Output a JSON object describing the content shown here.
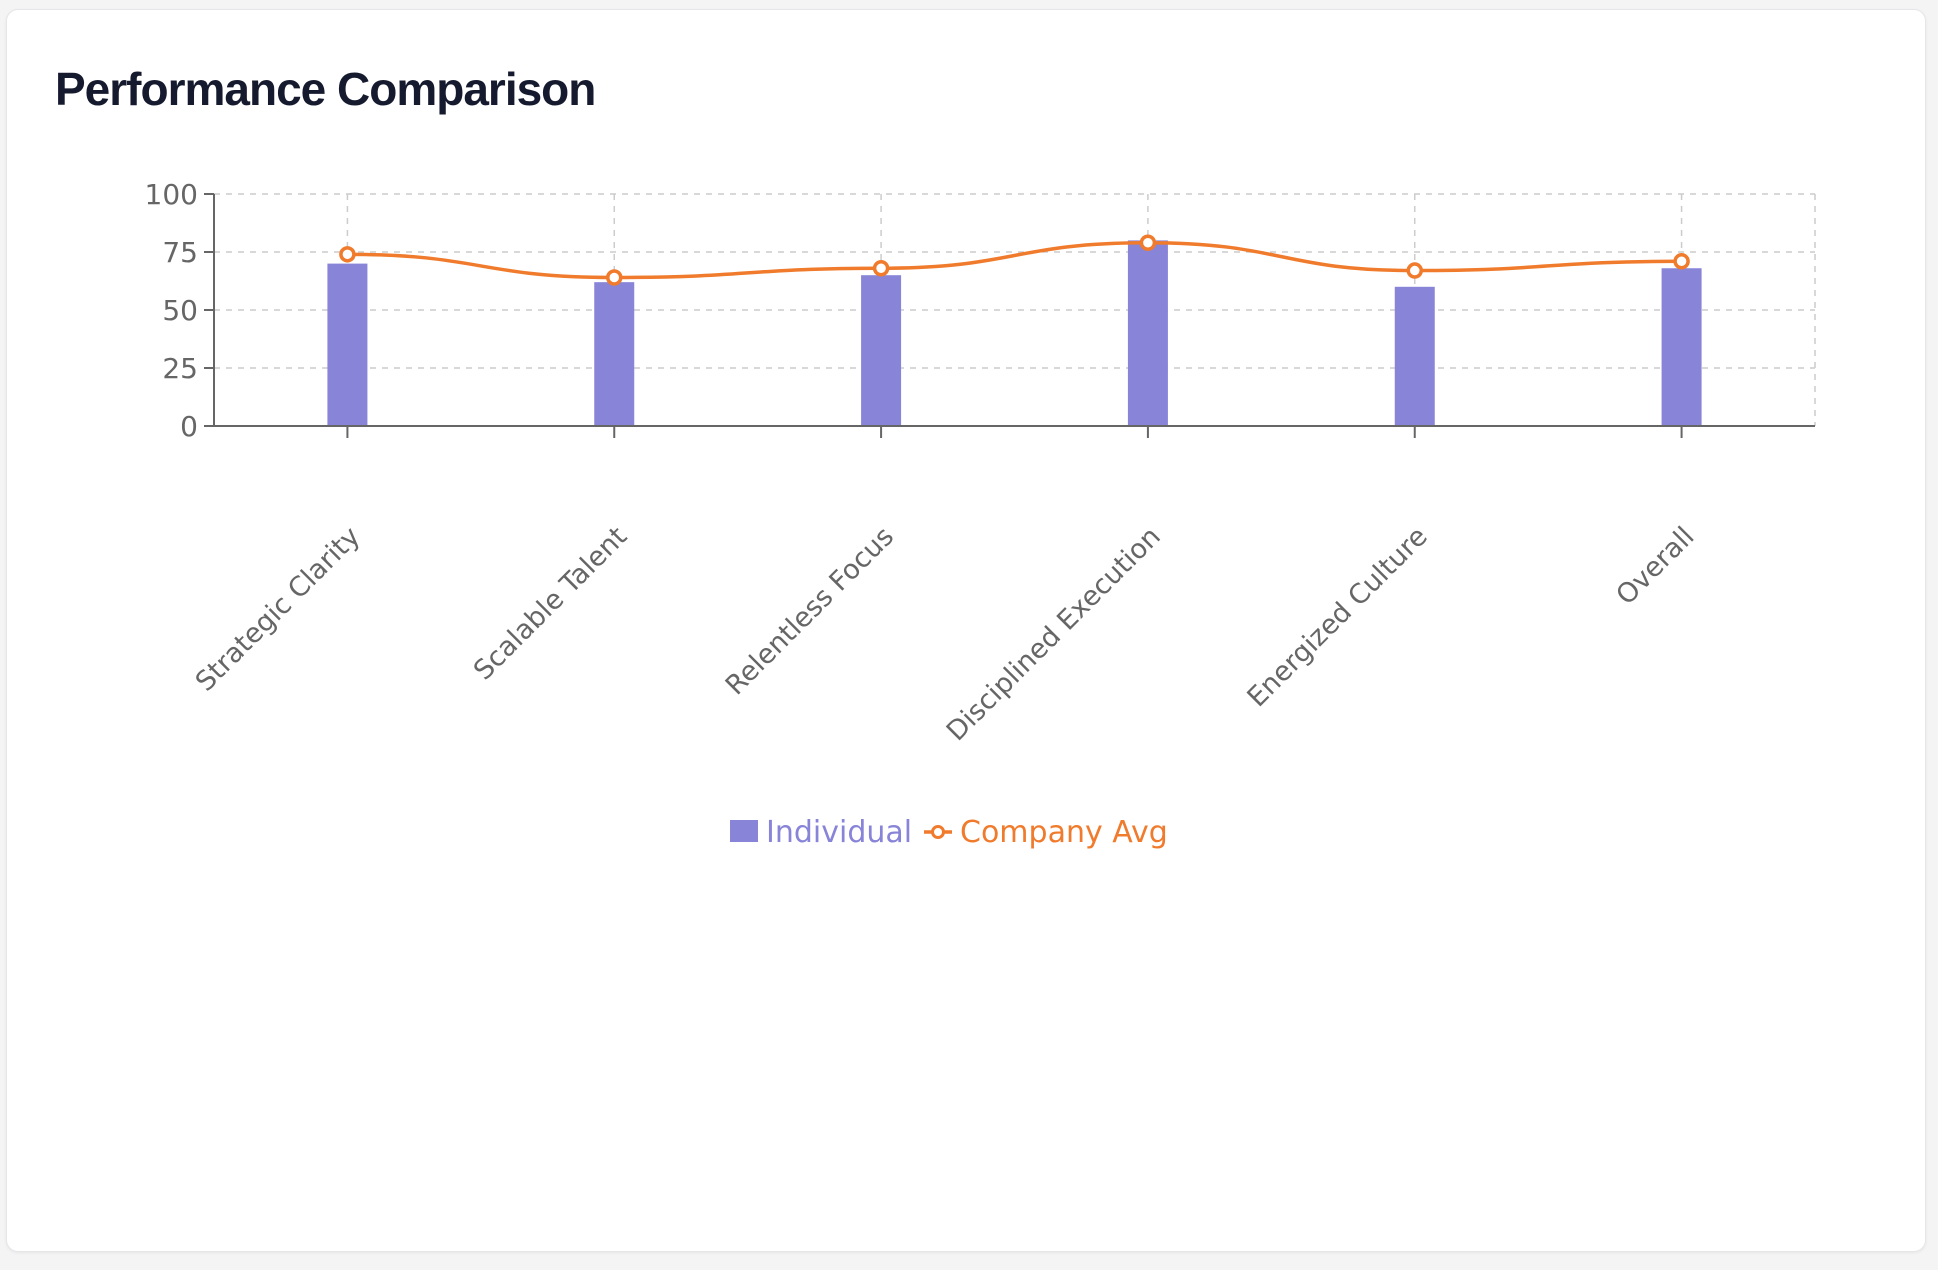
{
  "card": {
    "title": "Performance Comparison"
  },
  "chart_data": {
    "type": "bar",
    "categories": [
      "Strategic Clarity",
      "Scalable Talent",
      "Relentless Focus",
      "Disciplined Execution",
      "Energized Culture",
      "Overall"
    ],
    "series": [
      {
        "name": "Individual",
        "type": "bar",
        "color": "#8884d8",
        "values": [
          70,
          62,
          65,
          80,
          60,
          68
        ]
      },
      {
        "name": "Company Avg",
        "type": "line",
        "color": "#f07b2c",
        "values": [
          74,
          64,
          68,
          79,
          67,
          71
        ]
      }
    ],
    "ylim": [
      0,
      100
    ],
    "yticks": [
      0,
      25,
      50,
      75,
      100
    ],
    "grid": true,
    "legend_position": "bottom-center",
    "xlabel": "",
    "ylabel": ""
  }
}
